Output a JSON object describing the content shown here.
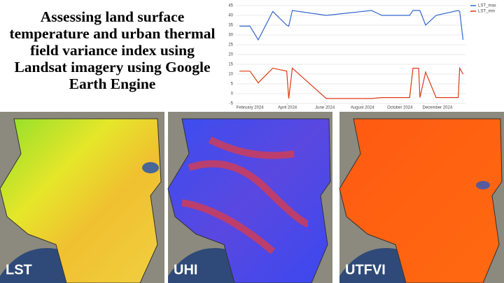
{
  "header": {
    "title": "Assessing land surface temperature and urban thermal field variance index using Landsat imagery using Google Earth Engine"
  },
  "chart_data": {
    "type": "line",
    "x": [
      1.44,
      2.0,
      2.44,
      3.22,
      3.96,
      4.07,
      4.26,
      6.07,
      8.48,
      9.04,
      10.52,
      10.7,
      11.0,
      11.07,
      11.37,
      11.93,
      13.11,
      13.19,
      13.37
    ],
    "series": [
      {
        "name": "LST_max",
        "color": "#3366cc",
        "values": [
          34.5,
          34.5,
          27.5,
          42,
          35,
          34.5,
          42.5,
          40,
          42.5,
          40,
          40,
          42.5,
          42.5,
          42.5,
          35,
          40,
          42.5,
          42,
          27.5
        ]
      },
      {
        "name": "LST_min",
        "color": "#dc3912",
        "values": [
          11.5,
          11.5,
          5.5,
          13,
          11.5,
          -2.5,
          13,
          -2.5,
          -2.5,
          -2,
          -2,
          13,
          13,
          -2,
          11,
          -2,
          -2,
          13,
          10
        ]
      }
    ],
    "xlim": [
      1.25,
      13.5
    ],
    "xticks": [
      {
        "value": 2,
        "label": "February 2024"
      },
      {
        "value": 4,
        "label": "April 2024"
      },
      {
        "value": 6,
        "label": "June 2024"
      },
      {
        "value": 8,
        "label": "August 2024"
      },
      {
        "value": 10,
        "label": "October 2024"
      },
      {
        "value": 12,
        "label": "December 2024"
      }
    ],
    "ylim": [
      -5,
      45
    ],
    "yticks": [
      -5,
      0,
      5,
      10,
      15,
      20,
      25,
      30,
      35,
      40,
      45
    ],
    "grid": true,
    "legend": "top-right"
  },
  "panels": [
    {
      "label": "LST"
    },
    {
      "label": "UHI"
    },
    {
      "label": "UTFVI"
    }
  ]
}
